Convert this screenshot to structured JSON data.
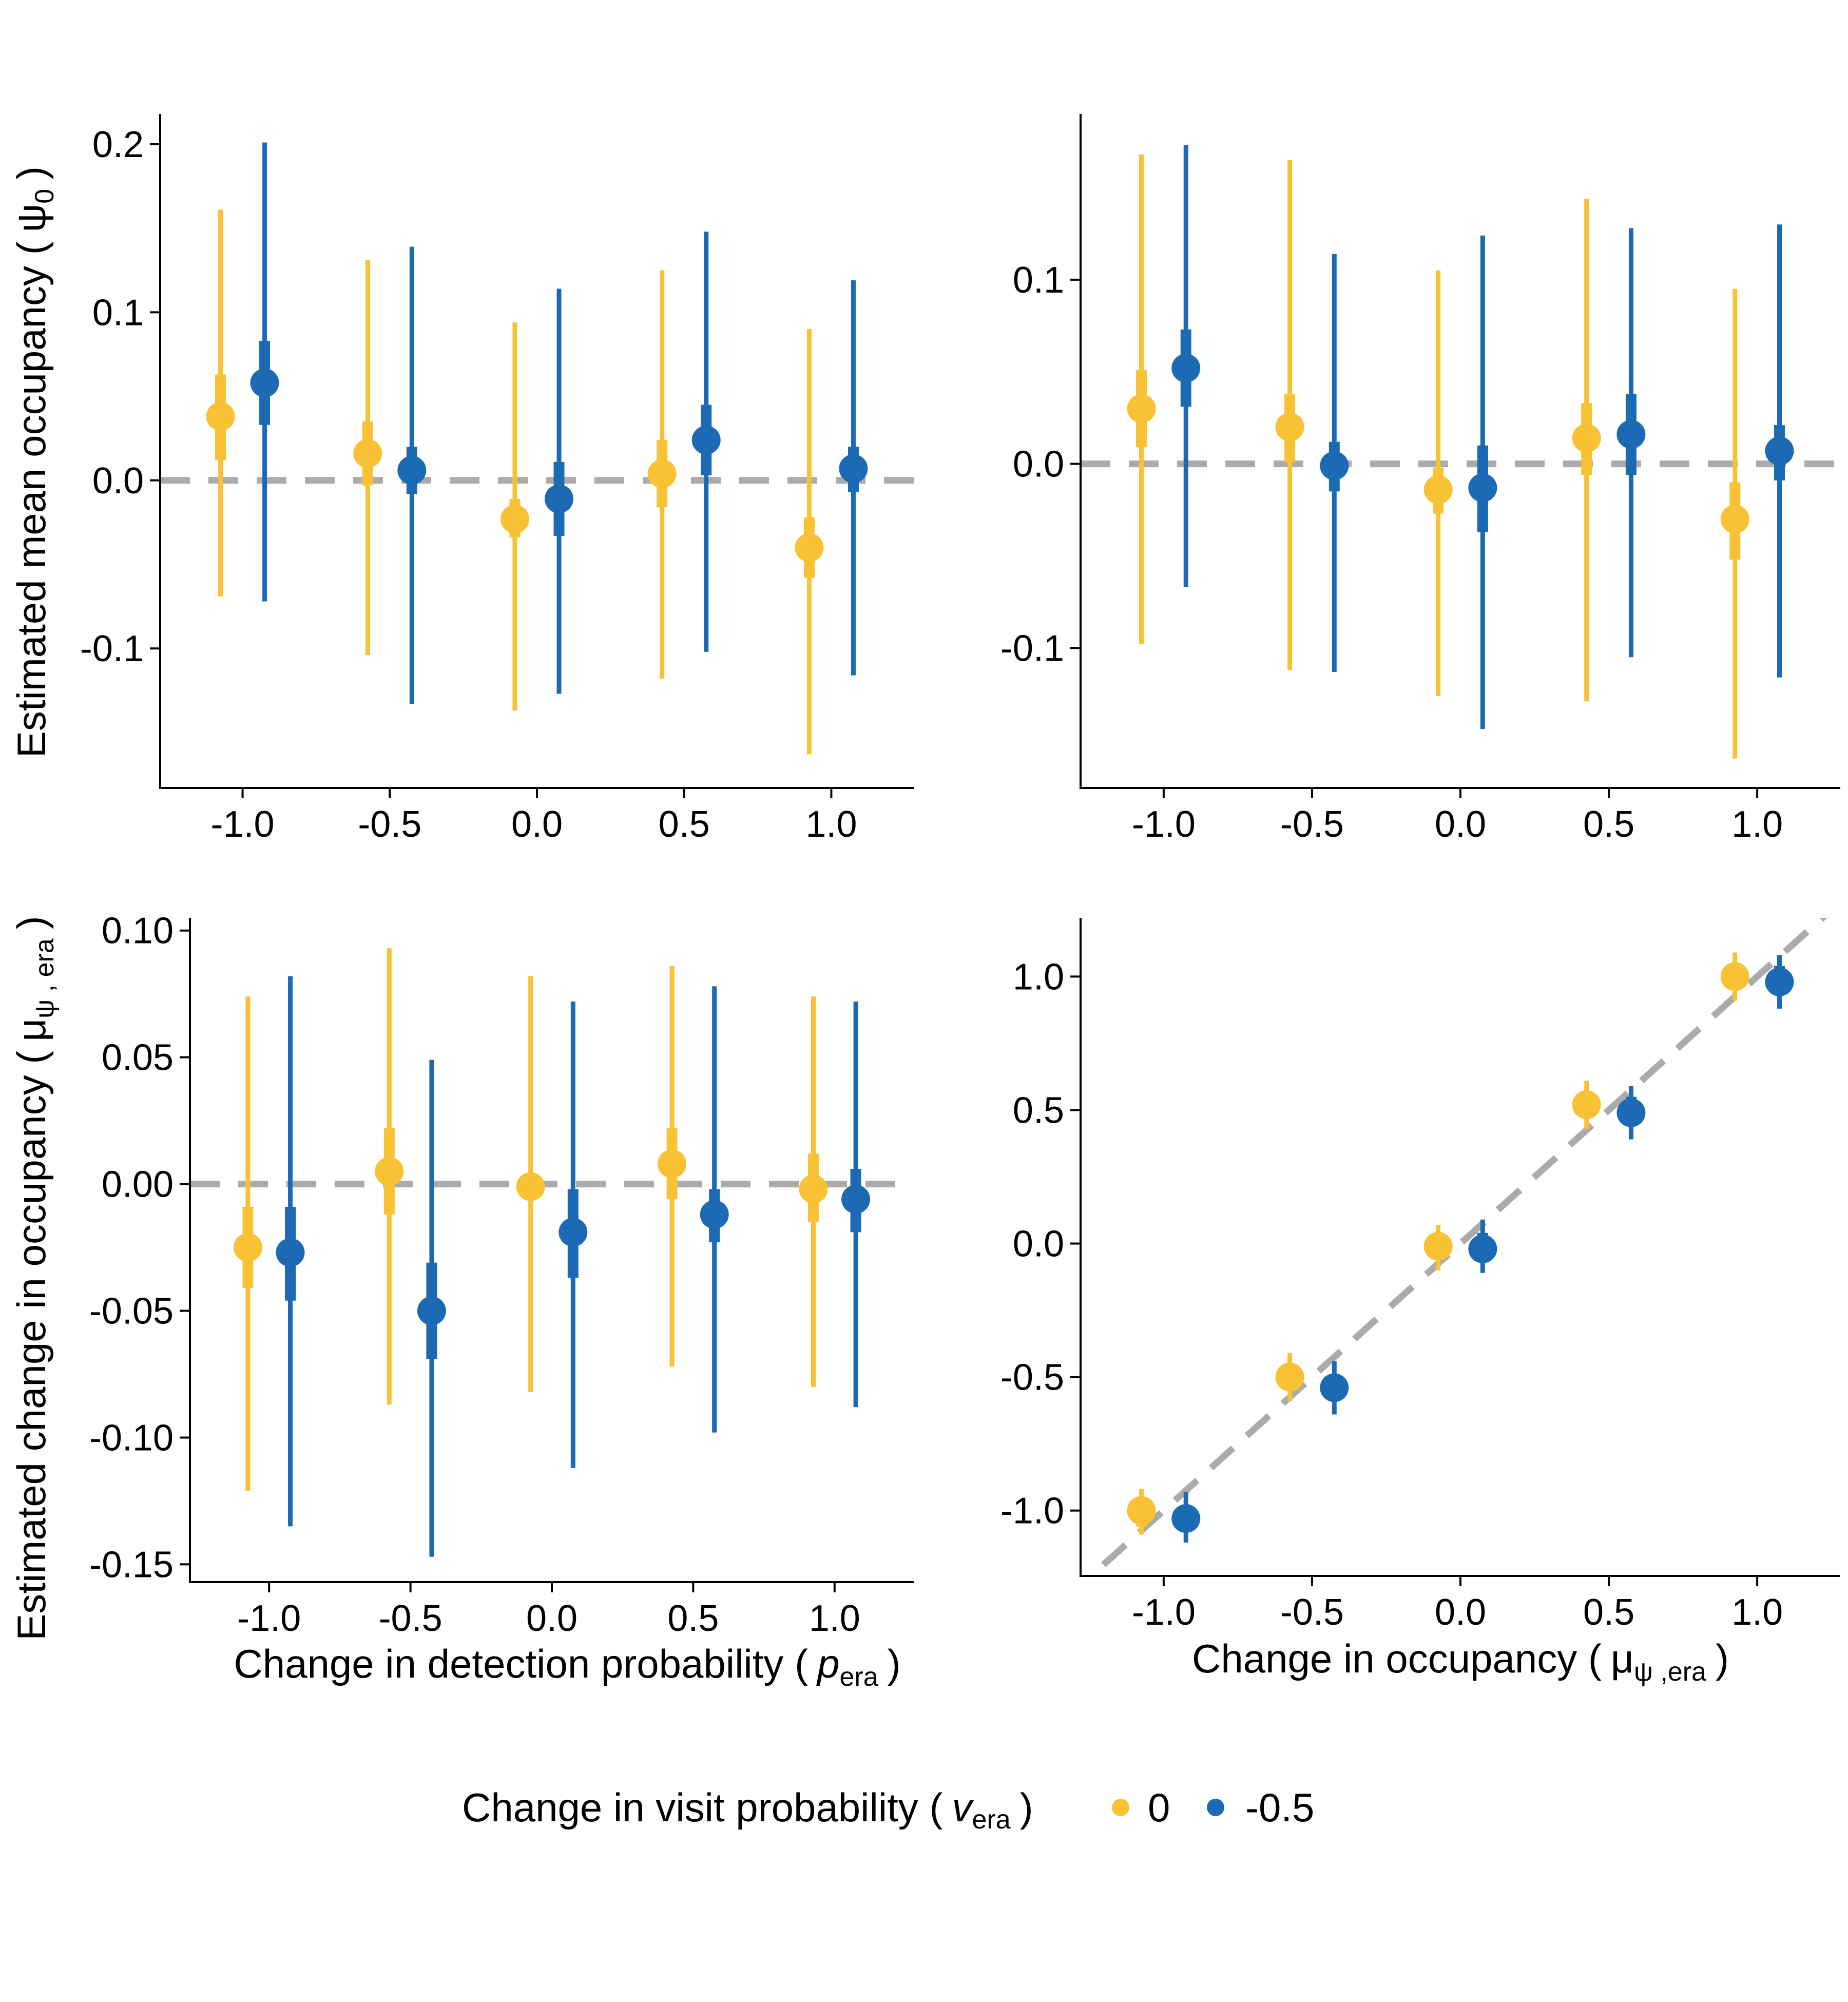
{
  "colors": {
    "v0": "#F9C234",
    "v_neg05": "#1B6AB3",
    "reference": "#ABABAB",
    "axis": "#000000"
  },
  "legend": {
    "title_prefix": "Change in visit probability (",
    "title_var": "v",
    "title_sub": "era",
    "title_suffix": ")",
    "entries": [
      {
        "label": "0",
        "color_key": "v0"
      },
      {
        "label": "-0.5",
        "color_key": "v_neg05"
      }
    ]
  },
  "chart_data": [
    {
      "id": "top-left",
      "type": "scatter",
      "ylabel": {
        "prefix": "Estimated mean occupancy (",
        "var": "ψ",
        "sub": "0",
        "suffix": ")"
      },
      "xlabel": null,
      "xlim": [
        -1.28,
        1.28
      ],
      "ylim": [
        -0.183,
        0.218
      ],
      "xticks": [
        "-1.0",
        "-0.5",
        "0.0",
        "0.5",
        "1.0"
      ],
      "xtick_values": [
        -1.0,
        -0.5,
        0.0,
        0.5,
        1.0
      ],
      "yticks": [
        "0.2",
        "0.1",
        "0.0",
        "-0.1"
      ],
      "ytick_values": [
        0.2,
        0.1,
        0.0,
        -0.1
      ],
      "reference": {
        "type": "hline",
        "y": 0
      },
      "grid": false,
      "series": [
        {
          "name": "0",
          "color_key": "v0",
          "offset": -0.075,
          "points": [
            {
              "x": -1.0,
              "y": 0.038,
              "inner": [
                0.012,
                0.063
              ],
              "outer": [
                -0.069,
                0.161
              ]
            },
            {
              "x": -0.5,
              "y": 0.016,
              "inner": [
                -0.003,
                0.035
              ],
              "outer": [
                -0.104,
                0.131
              ]
            },
            {
              "x": 0.0,
              "y": -0.023,
              "inner": [
                -0.034,
                -0.011
              ],
              "outer": [
                -0.137,
                0.094
              ]
            },
            {
              "x": 0.5,
              "y": 0.004,
              "inner": [
                -0.016,
                0.024
              ],
              "outer": [
                -0.118,
                0.125
              ]
            },
            {
              "x": 1.0,
              "y": -0.04,
              "inner": [
                -0.058,
                -0.022
              ],
              "outer": [
                -0.163,
                0.09
              ]
            }
          ]
        },
        {
          "name": "-0.5",
          "color_key": "v_neg05",
          "offset": 0.075,
          "points": [
            {
              "x": -1.0,
              "y": 0.058,
              "inner": [
                0.033,
                0.083
              ],
              "outer": [
                -0.072,
                0.201
              ]
            },
            {
              "x": -0.5,
              "y": 0.006,
              "inner": [
                -0.008,
                0.02
              ],
              "outer": [
                -0.133,
                0.139
              ]
            },
            {
              "x": 0.0,
              "y": -0.011,
              "inner": [
                -0.033,
                0.011
              ],
              "outer": [
                -0.127,
                0.114
              ]
            },
            {
              "x": 0.5,
              "y": 0.024,
              "inner": [
                0.003,
                0.045
              ],
              "outer": [
                -0.102,
                0.148
              ]
            },
            {
              "x": 1.0,
              "y": 0.007,
              "inner": [
                -0.007,
                0.02
              ],
              "outer": [
                -0.116,
                0.119
              ]
            }
          ]
        }
      ]
    },
    {
      "id": "top-right",
      "type": "scatter",
      "ylabel": null,
      "xlabel": null,
      "xlim": [
        -1.28,
        1.28
      ],
      "ylim": [
        -0.176,
        0.19
      ],
      "xticks": [
        "-1.0",
        "-0.5",
        "0.0",
        "0.5",
        "1.0"
      ],
      "xtick_values": [
        -1.0,
        -0.5,
        0.0,
        0.5,
        1.0
      ],
      "yticks": [
        "0.1",
        "0.0",
        "-0.1"
      ],
      "ytick_values": [
        0.1,
        0.0,
        -0.1
      ],
      "reference": {
        "type": "hline",
        "y": 0
      },
      "grid": false,
      "series": [
        {
          "name": "0",
          "color_key": "v0",
          "offset": -0.075,
          "points": [
            {
              "x": -1.0,
              "y": 0.03,
              "inner": [
                0.009,
                0.051
              ],
              "outer": [
                -0.098,
                0.168
              ]
            },
            {
              "x": -0.5,
              "y": 0.02,
              "inner": [
                0.001,
                0.038
              ],
              "outer": [
                -0.112,
                0.165
              ]
            },
            {
              "x": 0.0,
              "y": -0.014,
              "inner": [
                -0.027,
                -0.002
              ],
              "outer": [
                -0.126,
                0.105
              ]
            },
            {
              "x": 0.5,
              "y": 0.014,
              "inner": [
                -0.006,
                0.033
              ],
              "outer": [
                -0.129,
                0.144
              ]
            },
            {
              "x": 1.0,
              "y": -0.03,
              "inner": [
                -0.052,
                -0.01
              ],
              "outer": [
                -0.16,
                0.095
              ]
            }
          ]
        },
        {
          "name": "-0.5",
          "color_key": "v_neg05",
          "offset": 0.075,
          "points": [
            {
              "x": -1.0,
              "y": 0.052,
              "inner": [
                0.031,
                0.073
              ],
              "outer": [
                -0.067,
                0.173
              ]
            },
            {
              "x": -0.5,
              "y": -0.001,
              "inner": [
                -0.015,
                0.012
              ],
              "outer": [
                -0.113,
                0.114
              ]
            },
            {
              "x": 0.0,
              "y": -0.013,
              "inner": [
                -0.037,
                0.01
              ],
              "outer": [
                -0.144,
                0.124
              ]
            },
            {
              "x": 0.5,
              "y": 0.016,
              "inner": [
                -0.006,
                0.038
              ],
              "outer": [
                -0.105,
                0.128
              ]
            },
            {
              "x": 1.0,
              "y": 0.007,
              "inner": [
                -0.009,
                0.021
              ],
              "outer": [
                -0.116,
                0.13
              ]
            }
          ]
        }
      ]
    },
    {
      "id": "bottom-left",
      "type": "scatter",
      "ylabel": {
        "prefix": "Estimated change in occupancy (",
        "var": "μ",
        "sub": "ψ , era",
        "suffix": ")"
      },
      "xlabel": {
        "prefix": "Change in detection probability (",
        "var": "p",
        "sub": "era",
        "suffix": ")"
      },
      "xlim": [
        -1.28,
        1.28
      ],
      "ylim": [
        -0.157,
        0.105
      ],
      "xticks": [
        "-1.0",
        "-0.5",
        "0.0",
        "0.5",
        "1.0"
      ],
      "xtick_values": [
        -1.0,
        -0.5,
        0.0,
        0.5,
        1.0
      ],
      "yticks": [
        "0.10",
        "0.05",
        "0.00",
        "-0.05",
        "-0.10",
        "-0.15"
      ],
      "ytick_values": [
        0.1,
        0.05,
        0.0,
        -0.05,
        -0.1,
        -0.15
      ],
      "reference": {
        "type": "hline",
        "y": 0
      },
      "grid": false,
      "series": [
        {
          "name": "0",
          "color_key": "v0",
          "offset": -0.075,
          "points": [
            {
              "x": -1.0,
              "y": -0.025,
              "inner": [
                -0.041,
                -0.009
              ],
              "outer": [
                -0.121,
                0.074
              ]
            },
            {
              "x": -0.5,
              "y": 0.005,
              "inner": [
                -0.012,
                0.022
              ],
              "outer": [
                -0.087,
                0.093
              ]
            },
            {
              "x": 0.0,
              "y": -0.001,
              "inner": [
                -0.005,
                0.004
              ],
              "outer": [
                -0.082,
                0.082
              ]
            },
            {
              "x": 0.5,
              "y": 0.008,
              "inner": [
                -0.006,
                0.022
              ],
              "outer": [
                -0.072,
                0.086
              ]
            },
            {
              "x": 1.0,
              "y": -0.002,
              "inner": [
                -0.015,
                0.012
              ],
              "outer": [
                -0.08,
                0.074
              ]
            }
          ]
        },
        {
          "name": "-0.5",
          "color_key": "v_neg05",
          "offset": 0.075,
          "points": [
            {
              "x": -1.0,
              "y": -0.027,
              "inner": [
                -0.046,
                -0.009
              ],
              "outer": [
                -0.135,
                0.082
              ]
            },
            {
              "x": -0.5,
              "y": -0.05,
              "inner": [
                -0.069,
                -0.031
              ],
              "outer": [
                -0.147,
                0.049
              ]
            },
            {
              "x": 0.0,
              "y": -0.019,
              "inner": [
                -0.037,
                -0.002
              ],
              "outer": [
                -0.112,
                0.072
              ]
            },
            {
              "x": 0.5,
              "y": -0.012,
              "inner": [
                -0.023,
                -0.002
              ],
              "outer": [
                -0.098,
                0.078
              ]
            },
            {
              "x": 1.0,
              "y": -0.006,
              "inner": [
                -0.019,
                0.006
              ],
              "outer": [
                -0.088,
                0.072
              ]
            }
          ]
        }
      ]
    },
    {
      "id": "bottom-right",
      "type": "scatter",
      "ylabel": null,
      "xlabel": {
        "prefix": "Change in occupancy (",
        "var": "μ",
        "sub": "ψ ,era",
        "suffix": ")"
      },
      "xlim": [
        -1.28,
        1.28
      ],
      "ylim": [
        -1.245,
        1.22
      ],
      "xticks": [
        "-1.0",
        "-0.5",
        "0.0",
        "0.5",
        "1.0"
      ],
      "xtick_values": [
        -1.0,
        -0.5,
        0.0,
        0.5,
        1.0
      ],
      "yticks": [
        "1.0",
        "0.5",
        "0.0",
        "-0.5",
        "-1.0"
      ],
      "ytick_values": [
        1.0,
        0.5,
        0.0,
        -0.5,
        -1.0
      ],
      "reference": {
        "type": "identity"
      },
      "grid": false,
      "series": [
        {
          "name": "0",
          "color_key": "v0",
          "offset": -0.075,
          "points": [
            {
              "x": -1.0,
              "y": -1.0,
              "inner": [
                -1.06,
                -0.95
              ],
              "outer": [
                -1.09,
                -0.92
              ]
            },
            {
              "x": -0.5,
              "y": -0.5,
              "inner": [
                -0.55,
                -0.45
              ],
              "outer": [
                -0.59,
                -0.41
              ]
            },
            {
              "x": 0.0,
              "y": -0.01,
              "inner": [
                -0.06,
                0.04
              ],
              "outer": [
                -0.1,
                0.07
              ]
            },
            {
              "x": 0.5,
              "y": 0.52,
              "inner": [
                0.47,
                0.57
              ],
              "outer": [
                0.43,
                0.61
              ]
            },
            {
              "x": 1.0,
              "y": 1.0,
              "inner": [
                0.95,
                1.05
              ],
              "outer": [
                0.91,
                1.09
              ]
            }
          ]
        },
        {
          "name": "-0.5",
          "color_key": "v_neg05",
          "offset": 0.075,
          "points": [
            {
              "x": -1.0,
              "y": -1.03,
              "inner": [
                -1.08,
                -0.98
              ],
              "outer": [
                -1.12,
                -0.93
              ]
            },
            {
              "x": -0.5,
              "y": -0.54,
              "inner": [
                -0.59,
                -0.49
              ],
              "outer": [
                -0.64,
                -0.44
              ]
            },
            {
              "x": 0.0,
              "y": -0.02,
              "inner": [
                -0.07,
                0.04
              ],
              "outer": [
                -0.11,
                0.09
              ]
            },
            {
              "x": 0.5,
              "y": 0.49,
              "inner": [
                0.44,
                0.55
              ],
              "outer": [
                0.39,
                0.59
              ]
            },
            {
              "x": 1.0,
              "y": 0.98,
              "inner": [
                0.93,
                1.04
              ],
              "outer": [
                0.88,
                1.08
              ]
            }
          ]
        }
      ]
    }
  ]
}
